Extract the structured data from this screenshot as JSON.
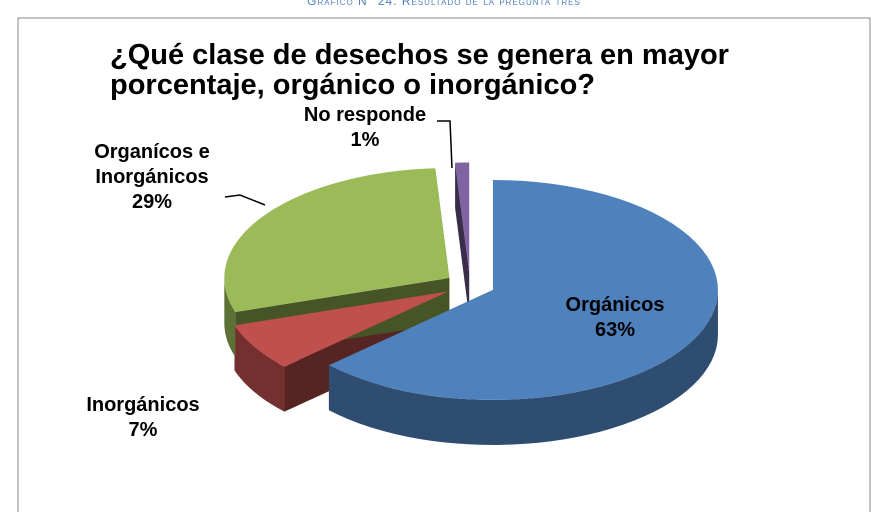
{
  "chart_data": {
    "type": "pie",
    "caption": "Gráfico N° 24:   Resultado de la pregunta tres",
    "title": "¿Qué clase de desechos se genera en mayor porcentaje, orgánico o inorgánico?",
    "categories": [
      "Orgánicos",
      "Inorgánicos",
      "Organícos e Inorgánicos",
      "No responde"
    ],
    "values": [
      63,
      7,
      29,
      1
    ],
    "value_labels": [
      "63%",
      "7%",
      "29%",
      "1%"
    ],
    "colors": [
      "#4f81bd",
      "#c0504d",
      "#9bbb59",
      "#8064a2"
    ]
  }
}
